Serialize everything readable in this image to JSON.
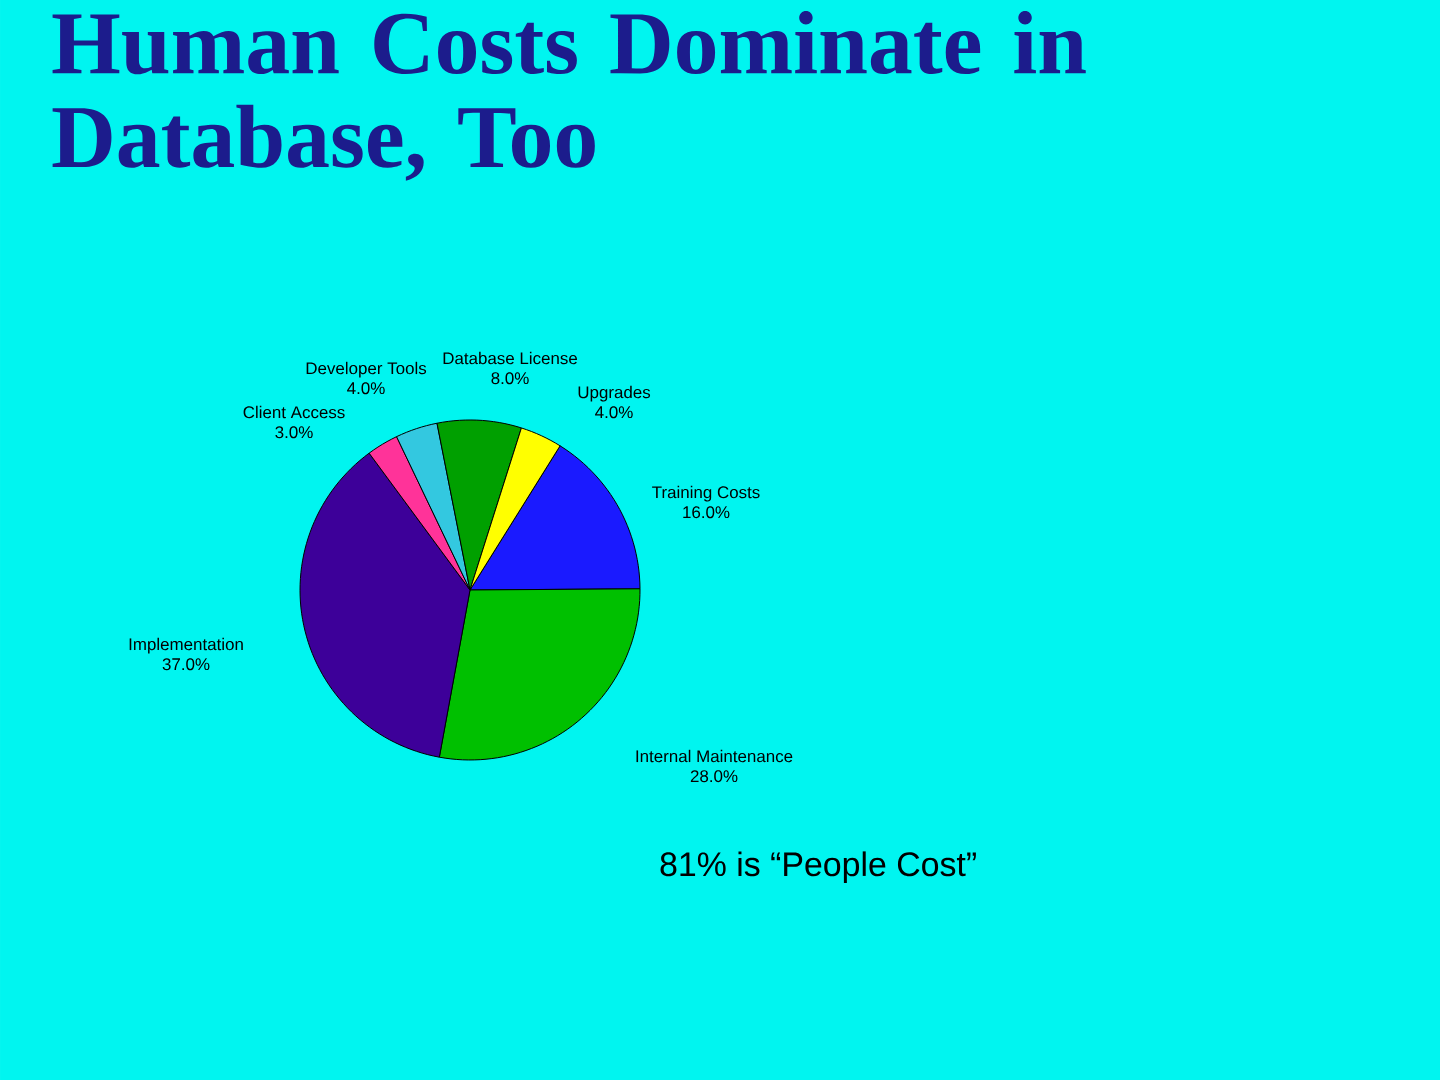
{
  "chart_data": {
    "type": "pie",
    "title": "Human Costs Dominate in Database, Too",
    "categories": [
      "Training Costs",
      "Internal Maintenance",
      "Implementation",
      "Client Access",
      "Developer Tools",
      "Database License",
      "Upgrades"
    ],
    "values": [
      16,
      28,
      37,
      3,
      4,
      8,
      4
    ],
    "value_labels": [
      "16.0%",
      "28.0%",
      "37.0%",
      "3.0%",
      "4.0%",
      "8.0%",
      "4.0%"
    ],
    "colors": [
      "#1a1aff",
      "#00c000",
      "#3d0099",
      "#ff3399",
      "#33c8e0",
      "#00a000",
      "#ffff00"
    ],
    "annotations": [
      "81% is “People Cost”"
    ]
  }
}
